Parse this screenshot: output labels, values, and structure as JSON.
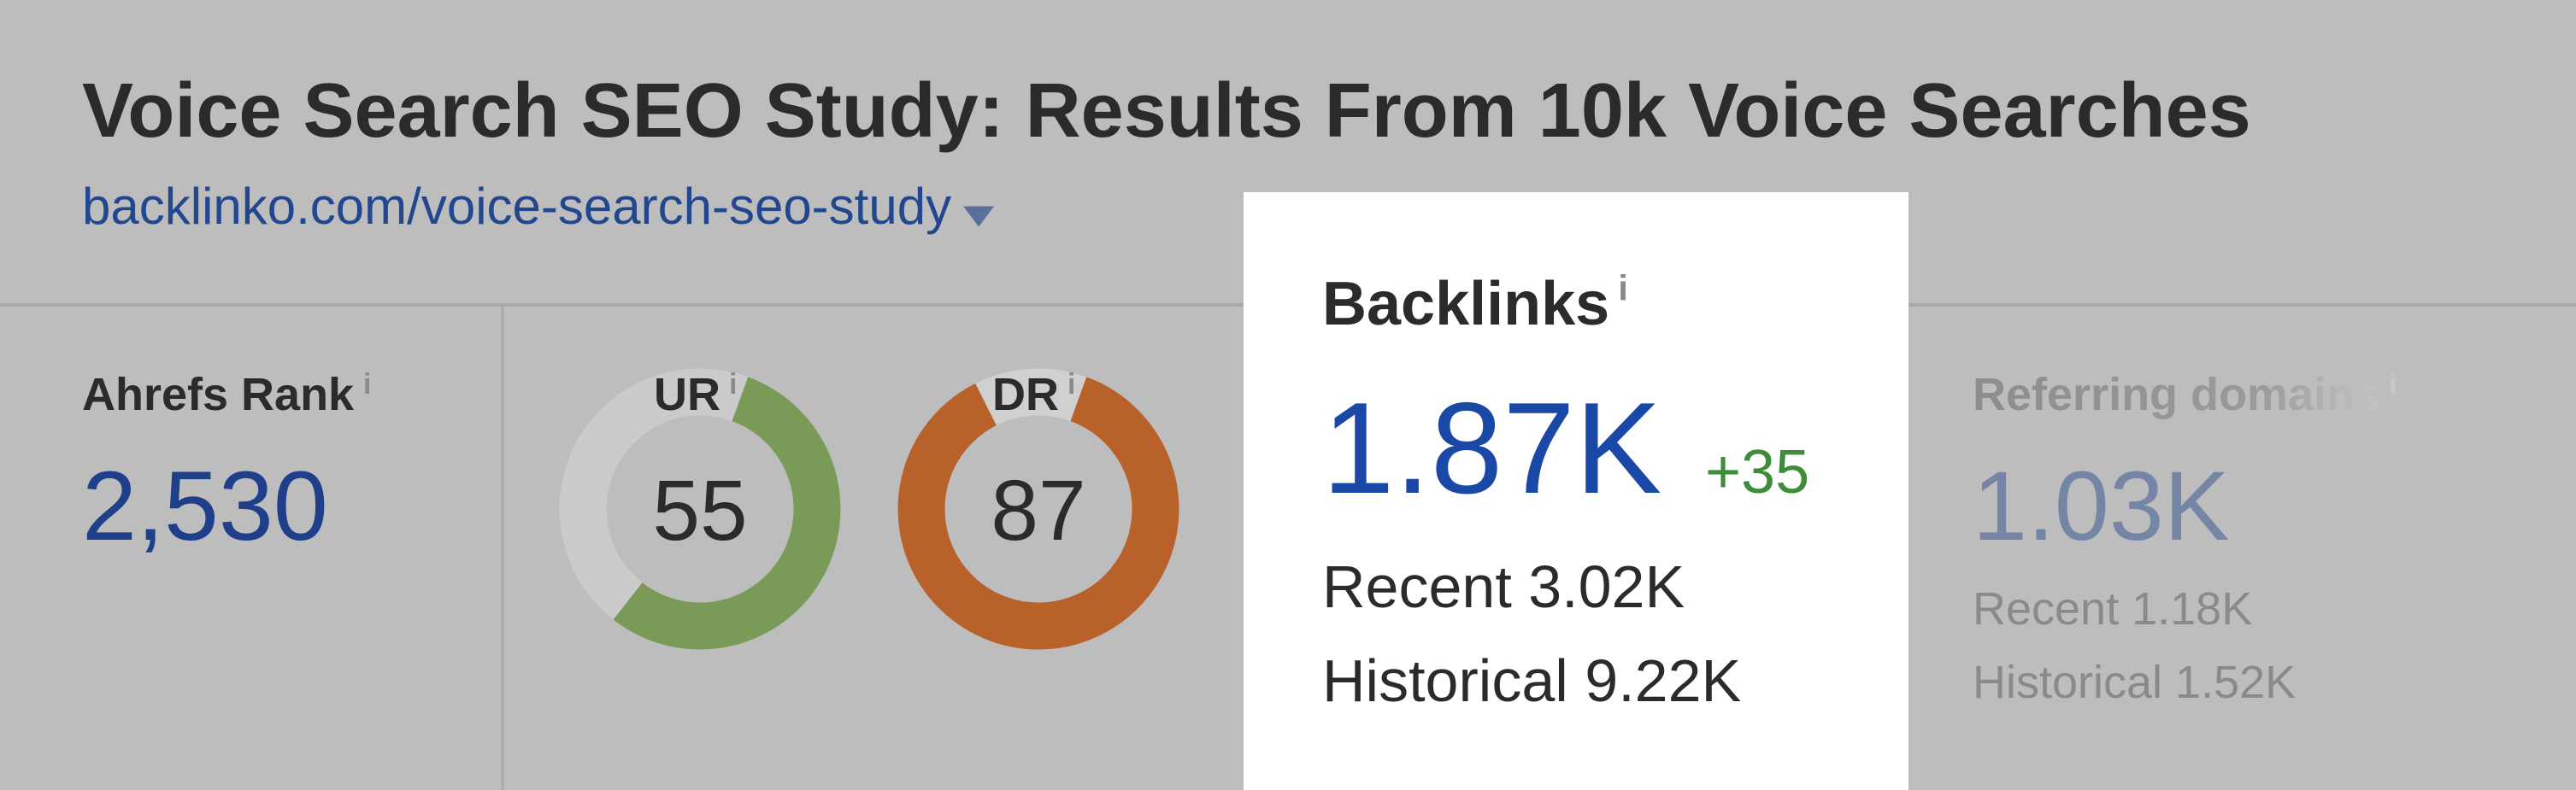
{
  "header": {
    "title": "Voice Search SEO Study: Results From 10k Voice Searches",
    "url": "backlinko.com/voice-search-seo-study"
  },
  "info_icon": "i",
  "metrics": {
    "ahrefs_rank": {
      "label": "Ahrefs Rank",
      "value": "2,530"
    },
    "ur": {
      "label": "UR",
      "value": 55,
      "color": "#7a9b58"
    },
    "dr": {
      "label": "DR",
      "value": 87,
      "color": "#b8612b"
    },
    "backlinks": {
      "label": "Backlinks",
      "value": "1.87K",
      "change": "+35",
      "recent": "Recent 3.02K",
      "historical": "Historical 9.22K"
    },
    "referring_domains": {
      "label": "Referring domains",
      "value": "1.03K",
      "recent": "Recent 1.18K",
      "historical": "Historical 1.52K"
    }
  }
}
